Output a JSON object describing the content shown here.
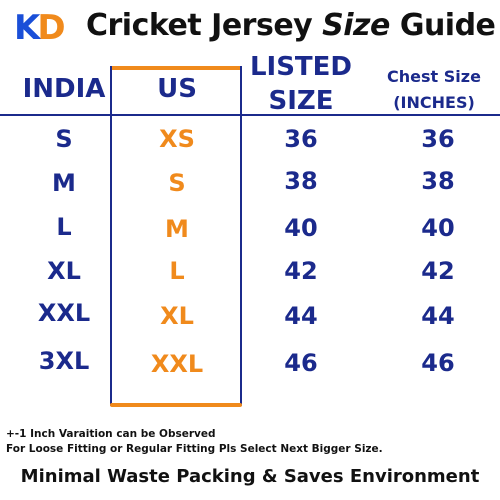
{
  "logo": {
    "k": "K",
    "d": "D"
  },
  "title": {
    "prefix": "Cricket Jersey ",
    "italic": "Size",
    "suffix": " Guide"
  },
  "headers": {
    "india": "INDIA",
    "us": "US",
    "listed_line1": "LISTED",
    "listed_line2": "SIZE",
    "chest_line1": "Chest Size",
    "chest_line2": "(INCHES)"
  },
  "rows": [
    {
      "india": "S",
      "us": "XS",
      "listed": "36",
      "chest": "36"
    },
    {
      "india": "M",
      "us": "S",
      "listed": "38",
      "chest": "38"
    },
    {
      "india": "L",
      "us": "M",
      "listed": "40",
      "chest": "40"
    },
    {
      "india": "XL",
      "us": "L",
      "listed": "42",
      "chest": "42"
    },
    {
      "india": "XXL",
      "us": "XL",
      "listed": "44",
      "chest": "44"
    },
    {
      "india": "3XL",
      "us": "XXL",
      "listed": "46",
      "chest": "46"
    }
  ],
  "notes": {
    "line1": "+-1 Inch Varaition can be Observed",
    "line2": "For Loose Fitting or Regular Fitting Pls Select Next Bigger Size."
  },
  "footer": "Minimal Waste Packing & Saves Environment",
  "colors": {
    "navy": "#1b2a8c",
    "orange": "#f08a1c",
    "logo_blue": "#1a4fd8"
  }
}
